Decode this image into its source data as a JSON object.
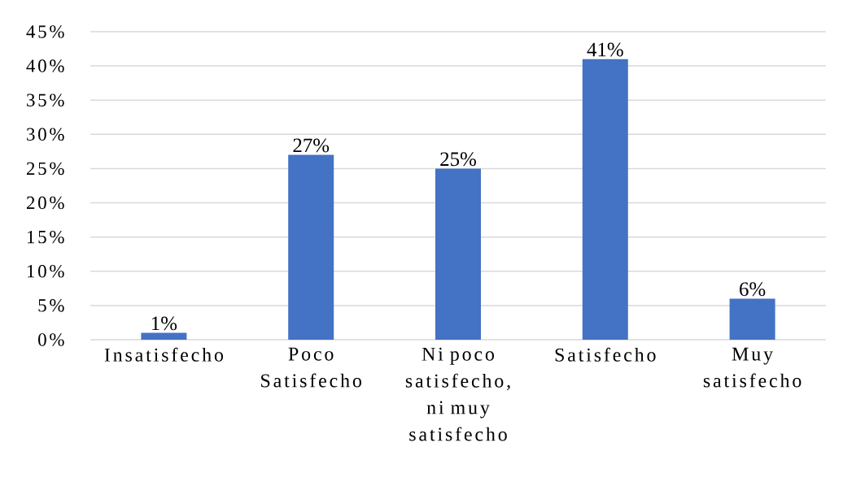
{
  "chart_data": {
    "type": "bar",
    "categories": [
      "Insatisfecho",
      "Poco Satisfecho",
      "Ni poco satisfecho, ni muy satisfecho",
      "Satisfecho",
      "Muy satisfecho"
    ],
    "values": [
      1,
      27,
      25,
      41,
      6
    ],
    "value_labels": [
      "1%",
      "27%",
      "25%",
      "41%",
      "6%"
    ],
    "color": "#4472c4",
    "ylim": [
      0,
      45
    ],
    "yticks": [
      {
        "value": 0,
        "label": "0%"
      },
      {
        "value": 5,
        "label": "5%"
      },
      {
        "value": 10,
        "label": "10%"
      },
      {
        "value": 15,
        "label": "15%"
      },
      {
        "value": 20,
        "label": "20%"
      },
      {
        "value": 25,
        "label": "25%"
      },
      {
        "value": 30,
        "label": "30%"
      },
      {
        "value": 35,
        "label": "35%"
      },
      {
        "value": 40,
        "label": "40%"
      },
      {
        "value": 45,
        "label": "45%"
      }
    ],
    "grid": "y"
  }
}
